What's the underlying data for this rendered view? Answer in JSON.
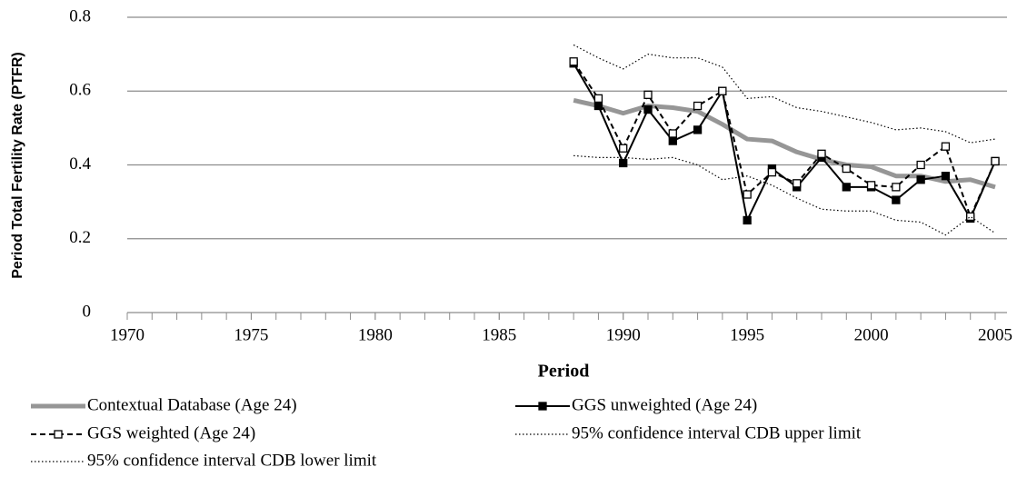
{
  "chart_data": {
    "type": "line",
    "y_label": "Period Total Fertility Rate (PTFR)",
    "x_label": "Period",
    "x": [
      1988,
      1989,
      1990,
      1991,
      1992,
      1993,
      1994,
      1995,
      1996,
      1997,
      1998,
      1999,
      2000,
      2001,
      2002,
      2003,
      2004,
      2005
    ],
    "xlim": [
      1970,
      2005
    ],
    "xticks": [
      1970,
      1975,
      1980,
      1985,
      1990,
      1995,
      2000,
      2005
    ],
    "ylim": [
      0,
      0.8
    ],
    "yticks": [
      0,
      0.2,
      0.4,
      0.6,
      0.8
    ],
    "grid": true,
    "series": [
      {
        "name": "Contextual Database (Age 24)",
        "color": "#969696",
        "width": 5,
        "dash": "none",
        "marker": "none",
        "values": [
          0.575,
          0.56,
          0.54,
          0.56,
          0.555,
          0.545,
          0.51,
          0.47,
          0.465,
          0.435,
          0.415,
          0.4,
          0.395,
          0.37,
          0.37,
          0.355,
          0.36,
          0.34
        ]
      },
      {
        "name": "GGS unweighted (Age 24)",
        "color": "#000000",
        "width": 2,
        "dash": "none",
        "marker": "filled",
        "values": [
          0.675,
          0.56,
          0.405,
          0.55,
          0.465,
          0.495,
          0.6,
          0.25,
          0.39,
          0.34,
          0.42,
          0.34,
          0.34,
          0.305,
          0.36,
          0.37,
          0.255,
          0.41
        ]
      },
      {
        "name": "GGS weighted (Age 24)",
        "color": "#000000",
        "width": 2,
        "dash": "6 4",
        "marker": "open",
        "values": [
          0.68,
          0.58,
          0.445,
          0.59,
          0.485,
          0.56,
          0.6,
          0.32,
          0.38,
          0.35,
          0.43,
          0.39,
          0.345,
          0.34,
          0.4,
          0.45,
          0.26,
          0.41
        ]
      },
      {
        "name": "95% confidence interval CDB upper limit",
        "color": "#000000",
        "width": 1.2,
        "dash": "1.5 2.5",
        "marker": "none",
        "values": [
          0.725,
          0.69,
          0.66,
          0.7,
          0.69,
          0.69,
          0.665,
          0.58,
          0.585,
          0.555,
          0.545,
          0.53,
          0.515,
          0.495,
          0.5,
          0.49,
          0.46,
          0.47
        ]
      },
      {
        "name": "95% confidence interval CDB lower limit",
        "color": "#000000",
        "width": 1.2,
        "dash": "1.5 2.5",
        "marker": "none",
        "values": [
          0.425,
          0.42,
          0.42,
          0.415,
          0.42,
          0.4,
          0.36,
          0.37,
          0.345,
          0.31,
          0.28,
          0.275,
          0.275,
          0.25,
          0.245,
          0.21,
          0.26,
          0.215
        ]
      }
    ]
  }
}
